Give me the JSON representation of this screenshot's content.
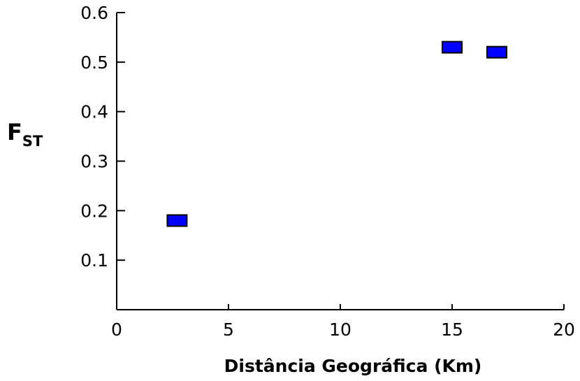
{
  "chart_data": {
    "type": "scatter",
    "xlabel": "Distância Geográfica (Km)",
    "ylabel": {
      "main": "F",
      "subscript": "ST"
    },
    "xlim": [
      0,
      20
    ],
    "ylim": [
      0,
      0.6
    ],
    "x_ticks": [
      "0",
      "5",
      "10",
      "15",
      "20"
    ],
    "y_ticks": [
      "0.1",
      "0.2",
      "0.3",
      "0.4",
      "0.5",
      "0.6"
    ],
    "grid": false,
    "legend": "none",
    "marker": "rectangle",
    "marker_color": "#0000ff",
    "points": [
      {
        "x": 2.7,
        "y": 0.18
      },
      {
        "x": 15.0,
        "y": 0.53
      },
      {
        "x": 17.0,
        "y": 0.52
      }
    ]
  }
}
